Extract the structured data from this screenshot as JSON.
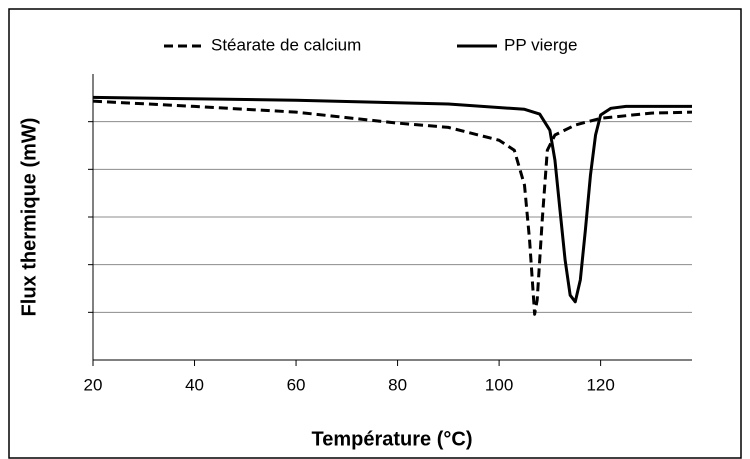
{
  "chart_data": {
    "type": "line",
    "xlabel": "Température (°C)",
    "ylabel": "Flux thermique (mW)",
    "xlim": [
      20,
      138
    ],
    "xticks": [
      20,
      40,
      60,
      80,
      100,
      120
    ],
    "ylim": [
      0,
      6
    ],
    "yticks": [
      1,
      2,
      3,
      4,
      5
    ],
    "grid": true,
    "legend": "top",
    "series": [
      {
        "name": "Stéarate de calcium",
        "color": "#000000",
        "dash": true,
        "x": [
          20,
          40,
          60,
          80,
          90,
          100,
          103,
          105,
          106,
          107,
          107.5,
          108.5,
          109.5,
          111,
          115,
          120,
          130,
          138
        ],
        "values": [
          5.43,
          5.32,
          5.2,
          4.97,
          4.88,
          4.61,
          4.4,
          3.67,
          2.52,
          0.96,
          1.26,
          2.94,
          4.4,
          4.72,
          4.93,
          5.07,
          5.18,
          5.2
        ]
      },
      {
        "name": "PP vierge",
        "color": "#000000",
        "dash": false,
        "x": [
          20,
          60,
          90,
          105,
          108,
          110,
          111,
          112,
          113,
          114,
          115,
          116,
          117,
          118,
          119,
          120,
          122,
          125,
          138
        ],
        "values": [
          5.51,
          5.45,
          5.37,
          5.26,
          5.16,
          4.82,
          4.19,
          3.14,
          2.1,
          1.36,
          1.22,
          1.68,
          2.73,
          3.88,
          4.72,
          5.14,
          5.28,
          5.32,
          5.32
        ]
      }
    ]
  }
}
